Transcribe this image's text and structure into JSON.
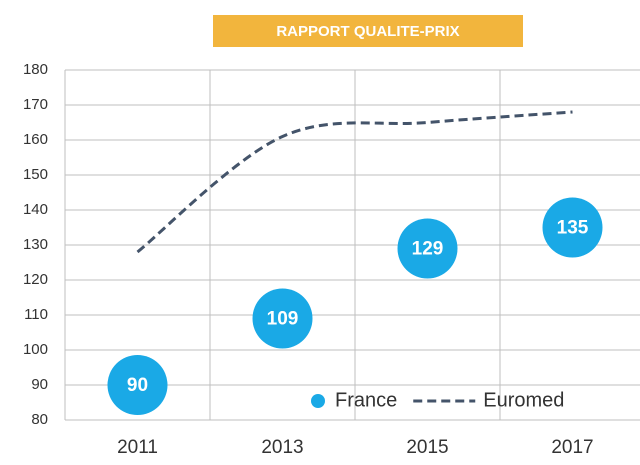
{
  "chart_data": {
    "type": "line",
    "title": "RAPPORT QUALITE-PRIX",
    "title_color": "#f2b53d",
    "categories": [
      "2011",
      "2013",
      "2015",
      "2017"
    ],
    "series": [
      {
        "name": "France",
        "color": "#1aa9e6",
        "marker": "circle",
        "values": [
          90,
          109,
          129,
          135
        ]
      },
      {
        "name": "Euromed",
        "color": "#44546a",
        "dashed": true,
        "values": [
          128,
          161,
          165,
          168
        ]
      }
    ],
    "ylim": [
      80,
      180
    ],
    "yticks": [
      80,
      90,
      100,
      110,
      120,
      130,
      140,
      150,
      160,
      170,
      180
    ],
    "grid": true,
    "legend": "lower right"
  }
}
